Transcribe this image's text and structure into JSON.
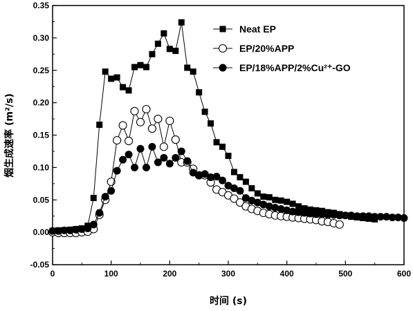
{
  "chart_data": {
    "type": "line",
    "xlabel": "时间 (s)",
    "ylabel": "烟生成速率 (m²/s)",
    "xlim": [
      0,
      600
    ],
    "ylim": [
      -0.05,
      0.35
    ],
    "xticks": [
      "0",
      "100",
      "200",
      "300",
      "400",
      "500",
      "600"
    ],
    "yticks": [
      "-0.05",
      "0.00",
      "0.05",
      "0.10",
      "0.15",
      "0.20",
      "0.25",
      "0.30",
      "0.35"
    ],
    "grid": false,
    "legend_position": "top-right",
    "series": [
      {
        "name": "Neat EP",
        "marker": "filled-square",
        "color": "#000000",
        "x": [
          0,
          10,
          20,
          30,
          40,
          50,
          60,
          70,
          80,
          90,
          100,
          110,
          120,
          130,
          140,
          150,
          160,
          170,
          180,
          190,
          200,
          210,
          220,
          230,
          240,
          250,
          260,
          270,
          280,
          290,
          300,
          310,
          320,
          330,
          340,
          350,
          360,
          370,
          380,
          390,
          400,
          410,
          420,
          430,
          440,
          450,
          460,
          470,
          480,
          490,
          500,
          510,
          520,
          530,
          540,
          550
        ],
        "y": [
          0.002,
          0.003,
          0.003,
          0.004,
          0.005,
          0.006,
          0.01,
          0.053,
          0.166,
          0.248,
          0.237,
          0.239,
          0.224,
          0.219,
          0.255,
          0.258,
          0.255,
          0.275,
          0.291,
          0.307,
          0.283,
          0.28,
          0.324,
          0.254,
          0.248,
          0.216,
          0.186,
          0.168,
          0.139,
          0.132,
          0.118,
          0.093,
          0.085,
          0.078,
          0.068,
          0.06,
          0.055,
          0.054,
          0.05,
          0.049,
          0.047,
          0.044,
          0.04,
          0.037,
          0.035,
          0.034,
          0.033,
          0.031,
          0.03,
          0.028,
          0.026,
          0.024,
          0.023,
          0.022,
          0.021,
          0.02
        ]
      },
      {
        "name": "EP/20%APP",
        "marker": "open-circle",
        "color": "#000000",
        "x": [
          0,
          10,
          20,
          30,
          40,
          50,
          60,
          70,
          80,
          90,
          100,
          110,
          120,
          130,
          140,
          150,
          160,
          170,
          180,
          190,
          200,
          210,
          220,
          230,
          240,
          250,
          260,
          270,
          280,
          290,
          300,
          310,
          320,
          330,
          340,
          350,
          360,
          370,
          380,
          390,
          400,
          410,
          420,
          430,
          440,
          450,
          460,
          470,
          480,
          490
        ],
        "y": [
          0.0,
          -0.001,
          -0.001,
          -0.001,
          -0.001,
          0.0,
          0.001,
          0.005,
          0.027,
          0.05,
          0.078,
          0.142,
          0.165,
          0.141,
          0.187,
          0.17,
          0.19,
          0.16,
          0.175,
          0.132,
          0.172,
          0.143,
          0.108,
          0.108,
          0.098,
          0.088,
          0.088,
          0.077,
          0.066,
          0.062,
          0.057,
          0.052,
          0.046,
          0.04,
          0.036,
          0.033,
          0.03,
          0.028,
          0.026,
          0.025,
          0.024,
          0.023,
          0.022,
          0.021,
          0.02,
          0.019,
          0.017,
          0.016,
          0.014,
          0.012
        ]
      },
      {
        "name": "EP/18%APP/2%Cu²⁺-GO",
        "marker": "filled-circle",
        "color": "#000000",
        "x": [
          0,
          10,
          20,
          30,
          40,
          50,
          60,
          70,
          80,
          90,
          100,
          110,
          120,
          130,
          140,
          150,
          160,
          170,
          180,
          190,
          200,
          210,
          220,
          230,
          240,
          250,
          260,
          270,
          280,
          290,
          300,
          310,
          320,
          330,
          340,
          350,
          360,
          370,
          380,
          390,
          400,
          410,
          420,
          430,
          440,
          450,
          460,
          470,
          480,
          490,
          500,
          510,
          520,
          530,
          540,
          550,
          560,
          570,
          580,
          590,
          600
        ],
        "y": [
          0.002,
          0.002,
          0.003,
          0.003,
          0.004,
          0.005,
          0.006,
          0.012,
          0.03,
          0.055,
          0.064,
          0.095,
          0.112,
          0.12,
          0.1,
          0.129,
          0.1,
          0.132,
          0.108,
          0.115,
          0.106,
          0.115,
          0.125,
          0.11,
          0.092,
          0.088,
          0.09,
          0.085,
          0.086,
          0.08,
          0.072,
          0.068,
          0.064,
          0.053,
          0.049,
          0.046,
          0.043,
          0.04,
          0.038,
          0.036,
          0.034,
          0.032,
          0.031,
          0.03,
          0.029,
          0.028,
          0.028,
          0.027,
          0.027,
          0.026,
          0.026,
          0.026,
          0.025,
          0.025,
          0.025,
          0.024,
          0.024,
          0.024,
          0.023,
          0.023,
          0.022
        ]
      }
    ]
  }
}
